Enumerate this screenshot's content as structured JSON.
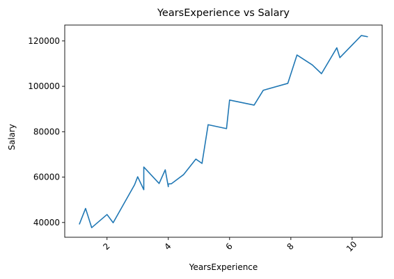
{
  "chart_data": {
    "type": "line",
    "title": "YearsExperience vs Salary",
    "xlabel": "YearsExperience",
    "ylabel": "Salary",
    "xlim": [
      0.62,
      10.98
    ],
    "ylim": [
      33500,
      127000
    ],
    "xticks": [
      2,
      4,
      6,
      8,
      10
    ],
    "xtick_labels": [
      "2",
      "4",
      "6",
      "8",
      "10"
    ],
    "xtick_rotation": 45,
    "yticks": [
      40000,
      60000,
      80000,
      100000,
      120000
    ],
    "ytick_labels": [
      "40000",
      "60000",
      "80000",
      "100000",
      "120000"
    ],
    "grid": false,
    "series": [
      {
        "color": "#1f77b4",
        "x": [
          1.1,
          1.3,
          1.5,
          2.0,
          2.2,
          2.9,
          3.0,
          3.2,
          3.2,
          3.7,
          3.9,
          4.0,
          4.0,
          4.1,
          4.5,
          4.9,
          5.1,
          5.3,
          5.9,
          6.0,
          6.8,
          7.1,
          7.9,
          8.2,
          8.7,
          9.0,
          9.5,
          9.6,
          10.3,
          10.5
        ],
        "y": [
          39343,
          46205,
          37731,
          43525,
          39891,
          56642,
          60150,
          54445,
          64445,
          57189,
          63218,
          55794,
          56957,
          57081,
          61111,
          67938,
          66029,
          83088,
          81363,
          93940,
          91738,
          98273,
          101302,
          113812,
          109431,
          105582,
          116969,
          112635,
          122391,
          121872
        ]
      }
    ]
  }
}
